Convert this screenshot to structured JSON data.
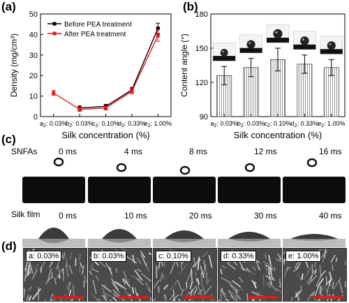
{
  "figure": {
    "panels": {
      "a": "(a)",
      "b": "(b)",
      "c": "(c)",
      "d": "(d)"
    }
  },
  "chart_data": [
    {
      "type": "line",
      "panel": "(a)",
      "categories": [
        "a₂: 0.03%",
        "b₂: 0.03%",
        "c₂: 0.10%",
        "d₂: 0.33%",
        "e₂: 1.00%"
      ],
      "x_positions": [
        0,
        1,
        2,
        3,
        4
      ],
      "series": [
        {
          "name": "Before PEA treatment",
          "color": "#000000",
          "x": [
            1,
            2,
            3,
            4
          ],
          "values": [
            4.2,
            5.0,
            13.0,
            43.0
          ],
          "errors": [
            1.0,
            1.0,
            1.2,
            2.5
          ]
        },
        {
          "name": "After PEA treatment",
          "color": "#e01b1b",
          "x": [
            0,
            1,
            2,
            3,
            4
          ],
          "values": [
            11.5,
            3.5,
            4.2,
            12.3,
            39.5
          ],
          "errors": [
            1.2,
            1.0,
            1.0,
            1.2,
            2.8
          ]
        }
      ],
      "xlabel": "Silk concentration (%)",
      "ylabel": "Density (mg/cm³)",
      "ylim": [
        0,
        50
      ],
      "yticks": [
        0,
        10,
        20,
        30,
        40,
        50
      ],
      "legend": "top-left"
    },
    {
      "type": "bar",
      "panel": "(b)",
      "categories": [
        "a₂: 0.03%",
        "b₂: 0.03%",
        "c₂: 0.10%",
        "d₂: 0.33%",
        "e₂: 1.00%"
      ],
      "values": [
        126,
        133,
        140,
        136,
        133
      ],
      "errors": [
        8,
        8,
        10,
        8,
        7
      ],
      "xlabel": "Silk concentration (%)",
      "ylabel": "Content angle (°)",
      "ylim": [
        90,
        180
      ],
      "yticks": [
        90,
        120,
        150,
        180
      ],
      "bar_pattern": "vertical-hatch"
    }
  ],
  "panel_c": {
    "rows": [
      {
        "label": "SNFAs",
        "times": [
          "0 ms",
          "4 ms",
          "8 ms",
          "12 ms",
          "16 ms"
        ]
      },
      {
        "label": "Silk film",
        "times": [
          "0 ms",
          "10 ms",
          "20 ms",
          "30 ms",
          "40 ms"
        ]
      }
    ]
  },
  "panel_d": {
    "images": [
      "a: 0.03%",
      "b: 0.03%",
      "c: 0.10%",
      "d: 0.33%",
      "e: 1.00%"
    ],
    "scalebar_color": "#e0191c"
  }
}
